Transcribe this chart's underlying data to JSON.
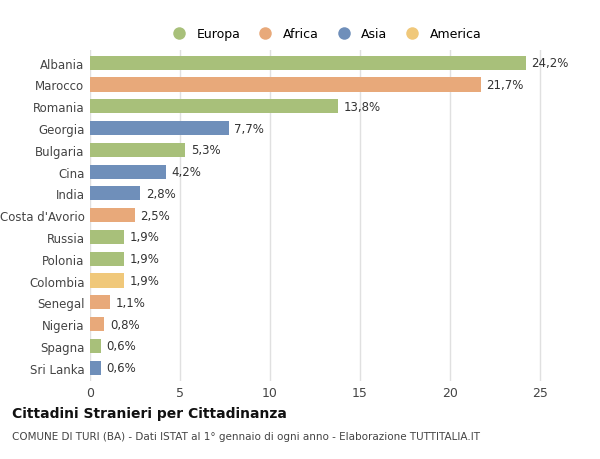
{
  "countries": [
    "Albania",
    "Marocco",
    "Romania",
    "Georgia",
    "Bulgaria",
    "Cina",
    "India",
    "Costa d'Avorio",
    "Russia",
    "Polonia",
    "Colombia",
    "Senegal",
    "Nigeria",
    "Spagna",
    "Sri Lanka"
  ],
  "values": [
    24.2,
    21.7,
    13.8,
    7.7,
    5.3,
    4.2,
    2.8,
    2.5,
    1.9,
    1.9,
    1.9,
    1.1,
    0.8,
    0.6,
    0.6
  ],
  "labels": [
    "24,2%",
    "21,7%",
    "13,8%",
    "7,7%",
    "5,3%",
    "4,2%",
    "2,8%",
    "2,5%",
    "1,9%",
    "1,9%",
    "1,9%",
    "1,1%",
    "0,8%",
    "0,6%",
    "0,6%"
  ],
  "continents": [
    "Europa",
    "Africa",
    "Europa",
    "Asia",
    "Europa",
    "Asia",
    "Asia",
    "Africa",
    "Europa",
    "Europa",
    "America",
    "Africa",
    "Africa",
    "Europa",
    "Asia"
  ],
  "continent_colors": {
    "Europa": "#a8c07a",
    "Africa": "#e8a97a",
    "Asia": "#6f8fba",
    "America": "#f0c87a"
  },
  "legend_order": [
    "Europa",
    "Africa",
    "Asia",
    "America"
  ],
  "bg_color": "#ffffff",
  "plot_bg": "#ffffff",
  "grid_color": "#e0e0e0",
  "title": "Cittadini Stranieri per Cittadinanza",
  "subtitle": "COMUNE DI TURI (BA) - Dati ISTAT al 1° gennaio di ogni anno - Elaborazione TUTTITALIA.IT",
  "xlim": [
    0,
    26
  ],
  "xticks": [
    0,
    5,
    10,
    15,
    20,
    25
  ],
  "label_fontsize": 8.5,
  "ytick_fontsize": 8.5,
  "xtick_fontsize": 9
}
